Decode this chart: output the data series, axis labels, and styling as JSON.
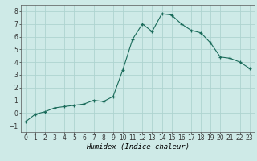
{
  "x": [
    0,
    1,
    2,
    3,
    4,
    5,
    6,
    7,
    8,
    9,
    10,
    11,
    12,
    13,
    14,
    15,
    16,
    17,
    18,
    19,
    20,
    21,
    22,
    23
  ],
  "y": [
    -0.7,
    -0.1,
    0.1,
    0.4,
    0.5,
    0.6,
    0.7,
    1.0,
    0.9,
    1.3,
    3.4,
    5.8,
    7.0,
    6.4,
    7.8,
    7.7,
    7.0,
    6.5,
    6.3,
    5.5,
    4.4,
    4.3,
    4.0,
    3.5
  ],
  "line_color": "#1a6b5a",
  "marker_color": "#1a6b5a",
  "bg_color": "#ceeae7",
  "grid_color": "#aed4d0",
  "xlabel": "Humidex (Indice chaleur)",
  "xlim": [
    -0.5,
    23.5
  ],
  "ylim": [
    -1.5,
    8.5
  ],
  "yticks": [
    -1,
    0,
    1,
    2,
    3,
    4,
    5,
    6,
    7,
    8
  ],
  "xticks": [
    0,
    1,
    2,
    3,
    4,
    5,
    6,
    7,
    8,
    9,
    10,
    11,
    12,
    13,
    14,
    15,
    16,
    17,
    18,
    19,
    20,
    21,
    22,
    23
  ],
  "tick_fontsize": 5.5,
  "xlabel_fontsize": 6.5
}
